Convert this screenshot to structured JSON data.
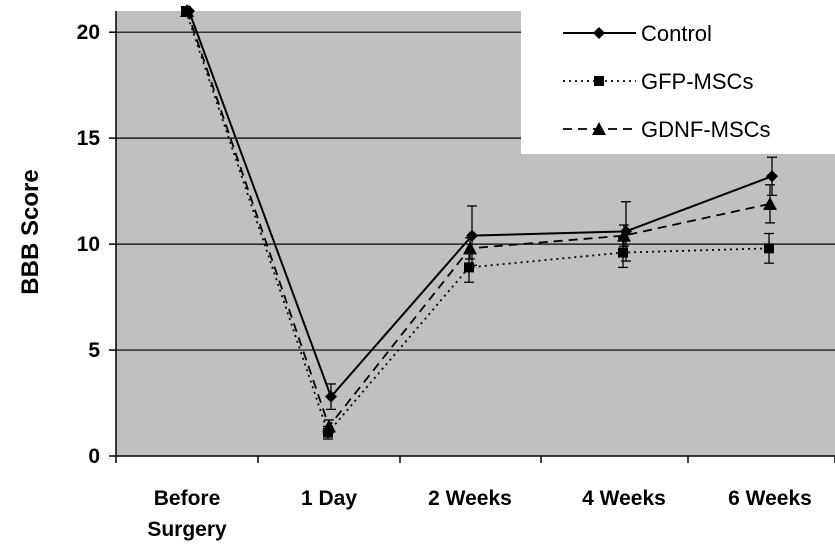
{
  "chart_data": {
    "type": "line",
    "categories": [
      "Before Surgery",
      "1 Day",
      "2 Weeks",
      "4 Weeks",
      "6 Weeks"
    ],
    "category_lines": [
      [
        "Before",
        "Surgery"
      ],
      [
        "1 Day"
      ],
      [
        "2 Weeks"
      ],
      [
        "4 Weeks"
      ],
      [
        "6 Weeks"
      ]
    ],
    "xlabel": "",
    "ylabel": "BBB Score",
    "ylim": [
      0,
      21
    ],
    "yticks": [
      0,
      5,
      10,
      15,
      20
    ],
    "grid": true,
    "legend_position": "top-right",
    "series": [
      {
        "name": "Control",
        "marker": "diamond",
        "dash": "solid",
        "values": [
          21,
          2.8,
          10.4,
          10.6,
          13.2
        ],
        "error": [
          0,
          0.6,
          1.4,
          1.4,
          0.9
        ]
      },
      {
        "name": "GFP-MSCs",
        "marker": "square",
        "dash": "dotted",
        "values": [
          21,
          1.1,
          8.9,
          9.6,
          9.8
        ],
        "error": [
          0,
          0.3,
          0.7,
          0.7,
          0.7
        ]
      },
      {
        "name": "GDNF-MSCs",
        "marker": "triangle",
        "dash": "dashed",
        "values": [
          21,
          1.4,
          9.8,
          10.4,
          11.9
        ],
        "error": [
          0,
          0.3,
          0.5,
          0.5,
          0.9
        ]
      }
    ],
    "colors": {
      "plot_background": "#c0c0c0",
      "gridline": "#000000",
      "series": "#000000"
    }
  }
}
